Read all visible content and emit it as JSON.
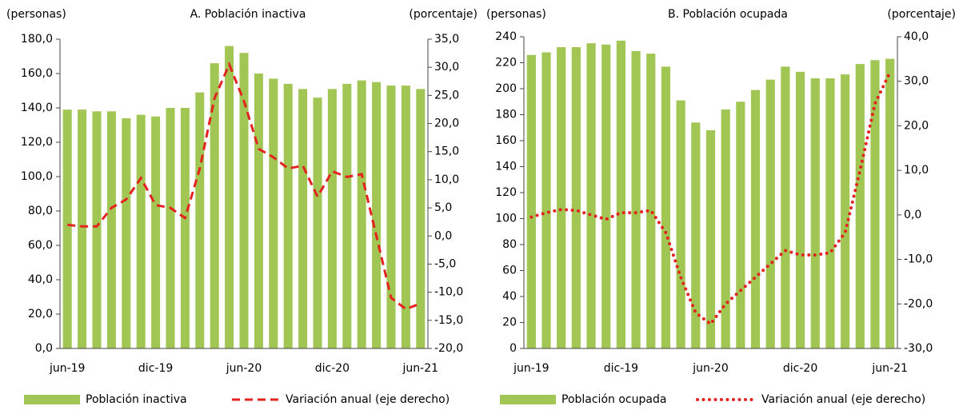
{
  "chart_data": [
    {
      "type": "bar_line",
      "title": "A. Población inactiva",
      "y_label": "(personas)",
      "y2_label": "(porcentaje)",
      "categories": [
        "jun-19",
        null,
        null,
        null,
        null,
        null,
        "dic-19",
        null,
        null,
        null,
        null,
        null,
        "jun-20",
        null,
        null,
        null,
        null,
        null,
        "dic-20",
        null,
        null,
        null,
        null,
        null,
        "jun-21"
      ],
      "series": [
        {
          "name": "Población inactiva",
          "type": "bar",
          "color": "#a2c654",
          "values": [
            139,
            139,
            138,
            138,
            134,
            136,
            135,
            140,
            140,
            149,
            166,
            176,
            172,
            160,
            157,
            154,
            151,
            146,
            151,
            154,
            156,
            155,
            153,
            153,
            151
          ]
        },
        {
          "name": "Variación anual (eje derecho)",
          "type": "line",
          "axis": "y2",
          "line_style": "dashed",
          "color": "#e3231f",
          "values": [
            2.0,
            1.7,
            1.7,
            5.0,
            6.5,
            10.3,
            5.5,
            5.0,
            3.2,
            12.0,
            24.5,
            30.5,
            24.0,
            15.5,
            14.0,
            12.0,
            12.5,
            7.0,
            11.5,
            10.5,
            11.0,
            0.0,
            -11.0,
            -13.0,
            -12.0
          ]
        }
      ],
      "ylim": [
        0,
        180
      ],
      "yticks": [
        {
          "value": 0,
          "label": "0,0"
        },
        {
          "value": 20,
          "label": "20,0"
        },
        {
          "value": 40,
          "label": "40,0"
        },
        {
          "value": 60,
          "label": "60,0"
        },
        {
          "value": 80,
          "label": "80,0"
        },
        {
          "value": 100,
          "label": "100,0"
        },
        {
          "value": 120,
          "label": "120,0"
        },
        {
          "value": 140,
          "label": "140,0"
        },
        {
          "value": 160,
          "label": "160,0"
        },
        {
          "value": 180,
          "label": "180,0"
        }
      ],
      "y2lim": [
        -20,
        35
      ],
      "y2ticks": [
        {
          "value": -20,
          "label": "-20,0"
        },
        {
          "value": -15,
          "label": "-15,0"
        },
        {
          "value": -10,
          "label": "-10,0"
        },
        {
          "value": -5,
          "label": "-5,0"
        },
        {
          "value": 0,
          "label": "0,0"
        },
        {
          "value": 5,
          "label": "5,0"
        },
        {
          "value": 10,
          "label": "10,0"
        },
        {
          "value": 15,
          "label": "15,0"
        },
        {
          "value": 20,
          "label": "20,0"
        },
        {
          "value": 25,
          "label": "25,0"
        },
        {
          "value": 30,
          "label": "30,0"
        },
        {
          "value": 35,
          "label": "35,0"
        }
      ]
    },
    {
      "type": "bar_line",
      "title": "B. Población ocupada",
      "y_label": "(personas)",
      "y2_label": "(porcentaje)",
      "categories": [
        "jun-19",
        null,
        null,
        null,
        null,
        null,
        "dic-19",
        null,
        null,
        null,
        null,
        null,
        "jun-20",
        null,
        null,
        null,
        null,
        null,
        "dic-20",
        null,
        null,
        null,
        null,
        null,
        "jun-21"
      ],
      "series": [
        {
          "name": "Población ocupada",
          "type": "bar",
          "color": "#a2c654",
          "values": [
            226,
            228,
            232,
            232,
            235,
            234,
            237,
            229,
            227,
            217,
            191,
            174,
            168,
            184,
            190,
            199,
            207,
            217,
            213,
            208,
            208,
            211,
            219,
            222,
            223
          ]
        },
        {
          "name": "Variación anual (eje derecho)",
          "type": "line",
          "axis": "y2",
          "line_style": "dotted",
          "color": "#e3231f",
          "values": [
            -0.5,
            0.5,
            1.2,
            1.0,
            0.0,
            -1.0,
            0.5,
            0.5,
            1.0,
            -4.0,
            -14.0,
            -22.0,
            -24.5,
            -20.0,
            -17.0,
            -14.0,
            -11.0,
            -8.0,
            -9.0,
            -9.0,
            -8.5,
            -4.0,
            10.0,
            25.0,
            32.0
          ]
        }
      ],
      "ylim": [
        0,
        240
      ],
      "yticks": [
        0,
        20,
        40,
        60,
        80,
        100,
        120,
        140,
        160,
        180,
        200,
        220,
        240
      ],
      "y2lim": [
        -30,
        40
      ],
      "y2ticks": [
        {
          "value": -30,
          "label": "-30,0"
        },
        {
          "value": -20,
          "label": "-20,0"
        },
        {
          "value": -10,
          "label": "-10,0"
        },
        {
          "value": 0,
          "label": "0,0"
        },
        {
          "value": 10,
          "label": "10,0"
        },
        {
          "value": 20,
          "label": "20,0"
        },
        {
          "value": 30,
          "label": "30,0"
        },
        {
          "value": 40,
          "label": "40,0"
        }
      ]
    }
  ]
}
